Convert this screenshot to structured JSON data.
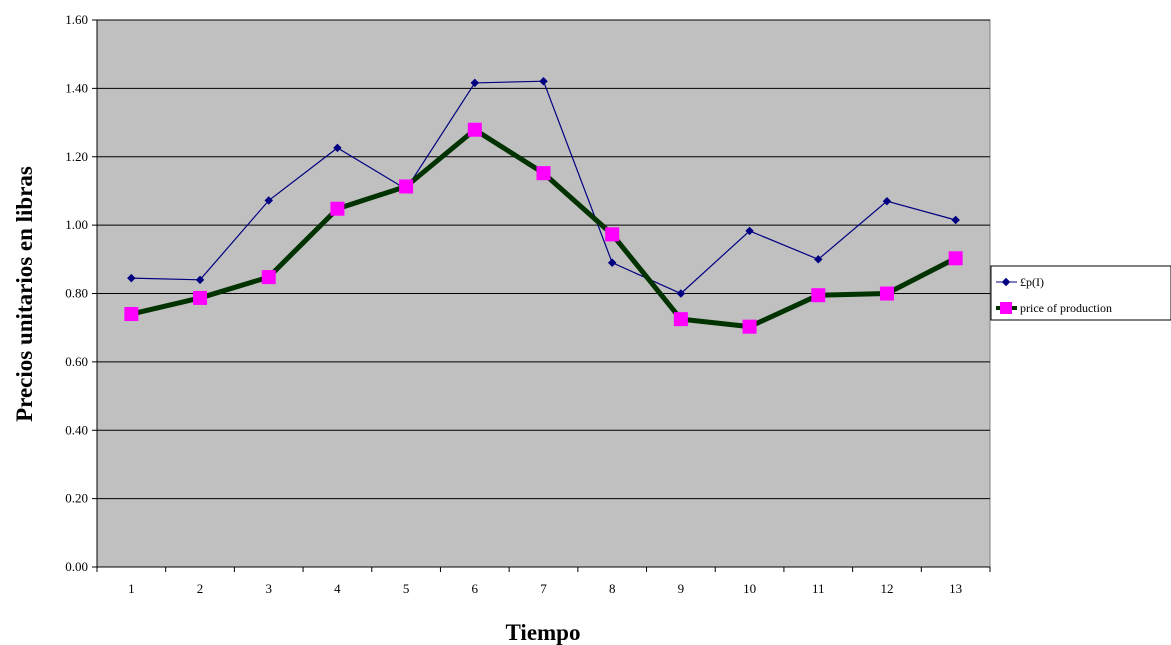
{
  "chart_data": {
    "type": "line",
    "title": "",
    "xlabel": "Tiempo",
    "ylabel": "Precios unitarios en libras",
    "categories": [
      "1",
      "2",
      "3",
      "4",
      "5",
      "6",
      "7",
      "8",
      "9",
      "10",
      "11",
      "12",
      "13"
    ],
    "ylim": [
      0,
      1.6
    ],
    "yticks": [
      "0.00",
      "0.20",
      "0.40",
      "0.60",
      "0.80",
      "1.00",
      "1.20",
      "1.40",
      "1.60"
    ],
    "grid": true,
    "legend_position": "right",
    "plot_background": "#c0c0c0",
    "series": [
      {
        "name": "£p(I)",
        "color": "#000080",
        "marker": "diamond",
        "values": [
          0.845,
          0.84,
          1.072,
          1.226,
          1.105,
          1.416,
          1.421,
          0.89,
          0.8,
          0.983,
          0.9,
          1.07,
          1.015
        ]
      },
      {
        "name": "price of production",
        "color": "#003300",
        "marker_color": "#ff00ff",
        "marker": "square",
        "values": [
          0.74,
          0.787,
          0.848,
          1.048,
          1.113,
          1.279,
          1.152,
          0.973,
          0.725,
          0.703,
          0.795,
          0.8,
          0.903
        ]
      }
    ]
  }
}
